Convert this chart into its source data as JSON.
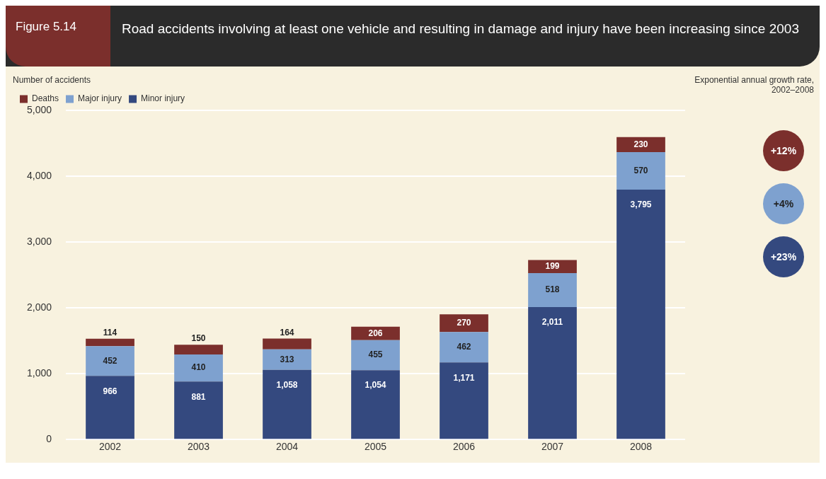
{
  "chart_data": {
    "type": "bar",
    "title": "Road accidents involving at least one vehicle and resulting in damage and injury have been increasing since 2003",
    "ylabel": "Number of accidents",
    "annotations": [
      "Figure 5.14",
      "Exponential annual growth rate, 2002–2008",
      "+23%",
      "+4%",
      "+12%"
    ],
    "categories": [
      "2002",
      "2003",
      "2004",
      "2005",
      "2006",
      "2007",
      "2008"
    ],
    "stacked": true,
    "series": [
      {
        "name": "Minor injury",
        "color": "#34497f",
        "values": [
          966,
          881,
          1058,
          1054,
          1171,
          2011,
          3795
        ],
        "value_labels": [
          "966",
          "881",
          "1,058",
          "1,054",
          "1,171",
          "2,011",
          "3,795"
        ]
      },
      {
        "name": "Major injury",
        "color": "#7ea1cf",
        "values": [
          452,
          410,
          313,
          455,
          462,
          518,
          570
        ]
      },
      {
        "name": "Deaths",
        "color": "#7b2f2c",
        "values": [
          114,
          150,
          164,
          206,
          270,
          199,
          230
        ]
      }
    ],
    "ylim": [
      0,
      5000
    ],
    "yticks": [
      0,
      {
        "value": 1000,
        "label": "1,000"
      },
      {
        "value": 2000,
        "label": "2,000"
      },
      {
        "value": 3000,
        "label": "3,000"
      },
      {
        "value": 4000,
        "label": "4,000"
      },
      {
        "value": 5000,
        "label": "5,000"
      }
    ],
    "grid": "y",
    "legend": "top left",
    "data_labels": true
  }
}
